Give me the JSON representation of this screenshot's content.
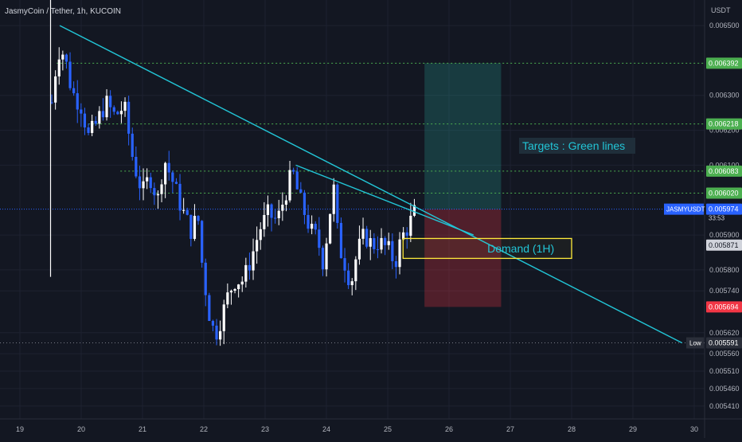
{
  "header": {
    "symbol_title": "JasmyCoin / Tether, 1h, KUCOIN",
    "currency": "USDT"
  },
  "colors": {
    "background": "#131722",
    "grid": "#1e2230",
    "up": "#ffffff",
    "down": "#2962ff",
    "trend": "#22c5d6",
    "target": "#4caf50",
    "stop": "#f23645",
    "demand": "#ffeb3b",
    "axis_text": "#b2b5be"
  },
  "chart_data": {
    "type": "candlestick",
    "title": "JasmyCoin / Tether, 1h, KUCOIN",
    "ylabel": "USDT",
    "xlim": [
      19,
      30
    ],
    "ylim": [
      0.00538,
      0.00658
    ],
    "grid": true,
    "x_ticks": [
      "19",
      "20",
      "21",
      "22",
      "23",
      "24",
      "25",
      "26",
      "27",
      "28",
      "29",
      "30"
    ],
    "y_ticks": [
      "0.006500",
      "0.006300",
      "0.006200",
      "0.006100",
      "0.005900",
      "0.005800",
      "0.005740",
      "0.005620",
      "0.005560",
      "0.005510",
      "0.005460",
      "0.005410"
    ],
    "price_path": [
      [
        19.52,
        0.00628
      ],
      [
        19.62,
        0.00643
      ],
      [
        19.72,
        0.00642
      ],
      [
        19.85,
        0.00631
      ],
      [
        20.0,
        0.00627
      ],
      [
        20.12,
        0.00618
      ],
      [
        20.25,
        0.00622
      ],
      [
        20.4,
        0.00628
      ],
      [
        20.55,
        0.00624
      ],
      [
        20.7,
        0.00627
      ],
      [
        20.85,
        0.00611
      ],
      [
        21.0,
        0.00602
      ],
      [
        21.12,
        0.00607
      ],
      [
        21.25,
        0.006
      ],
      [
        21.35,
        0.00612
      ],
      [
        21.5,
        0.00605
      ],
      [
        21.65,
        0.00597
      ],
      [
        21.8,
        0.00591
      ],
      [
        21.9,
        0.00596
      ],
      [
        21.98,
        0.0058
      ],
      [
        22.05,
        0.00572
      ],
      [
        22.12,
        0.00564
      ],
      [
        22.2,
        0.00562
      ],
      [
        22.3,
        0.00567
      ],
      [
        22.4,
        0.00573
      ],
      [
        22.5,
        0.00577
      ],
      [
        22.65,
        0.00577
      ],
      [
        22.8,
        0.00585
      ],
      [
        22.92,
        0.00592
      ],
      [
        23.05,
        0.00596
      ],
      [
        23.2,
        0.00594
      ],
      [
        23.35,
        0.00603
      ],
      [
        23.45,
        0.00608
      ],
      [
        23.55,
        0.00601
      ],
      [
        23.65,
        0.00596
      ],
      [
        23.75,
        0.00591
      ],
      [
        23.85,
        0.00589
      ],
      [
        23.95,
        0.00582
      ],
      [
        24.05,
        0.00596
      ],
      [
        24.12,
        0.00603
      ],
      [
        24.2,
        0.00587
      ],
      [
        24.3,
        0.00582
      ],
      [
        24.4,
        0.00576
      ],
      [
        24.5,
        0.00585
      ],
      [
        24.62,
        0.0059
      ],
      [
        24.75,
        0.00587
      ],
      [
        24.85,
        0.00588
      ],
      [
        25.0,
        0.00586
      ],
      [
        25.12,
        0.00582
      ],
      [
        25.22,
        0.00589
      ],
      [
        25.35,
        0.00593
      ],
      [
        25.45,
        0.00597
      ]
    ],
    "trendlines": [
      {
        "from": [
          19.65,
          0.0065
        ],
        "to": [
          29.8,
          0.005591
        ]
      },
      {
        "from": [
          23.5,
          0.0061
        ],
        "to": [
          26.4,
          0.0059
        ]
      }
    ],
    "target_levels": [
      "0.006392",
      "0.006218",
      "0.006083",
      "0.006020"
    ],
    "price_labels": {
      "current": "0.005974",
      "current_symbol": "JASMYUSDT",
      "countdown": "33:53",
      "level": "0.005871",
      "stop": "0.005694",
      "low_label": "Low",
      "low": "0.005591"
    },
    "position": {
      "x_from": 25.6,
      "x_to": 26.85,
      "entry": 0.005974,
      "target": 0.006392,
      "stop": 0.005694
    },
    "demand_zone": {
      "x_from": 25.25,
      "x_to": 28.0,
      "top": 0.00589,
      "bottom": 0.005833,
      "label": "Demand (1H)"
    },
    "annotation": "Targets : Green lines"
  }
}
